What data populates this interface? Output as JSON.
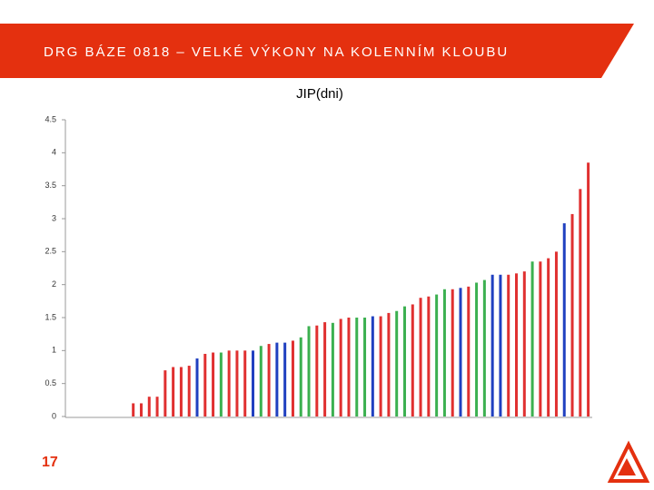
{
  "header": {
    "title": "DRG BÁZE 0818 – VELKÉ VÝKONY NA KOLENNÍM KLOUBU"
  },
  "slide_number": "17",
  "chart_data": {
    "type": "bar",
    "title": "JIP(dni)",
    "values": [
      0,
      0,
      0,
      0,
      0,
      0,
      0,
      0,
      0.2,
      0.2,
      0.3,
      0.3,
      0.7,
      0.75,
      0.75,
      0.77,
      0.88,
      0.95,
      0.97,
      0.97,
      1.0,
      1.0,
      1.0,
      1.0,
      1.07,
      1.1,
      1.12,
      1.12,
      1.15,
      1.2,
      1.37,
      1.38,
      1.43,
      1.42,
      1.48,
      1.5,
      1.5,
      1.5,
      1.52,
      1.52,
      1.57,
      1.6,
      1.67,
      1.7,
      1.8,
      1.82,
      1.85,
      1.93,
      1.93,
      1.95,
      1.97,
      2.03,
      2.07,
      2.15,
      2.15,
      2.15,
      2.17,
      2.2,
      2.35,
      2.35,
      2.4,
      2.5,
      2.93,
      3.07,
      3.45,
      3.85
    ],
    "colors": [
      "#e03030",
      "#e03030",
      "#e03030",
      "#e03030",
      "#e03030",
      "#e03030",
      "#e03030",
      "#e03030",
      "#e03030",
      "#e03030",
      "#e03030",
      "#e03030",
      "#e03030",
      "#e03030",
      "#e03030",
      "#e03030",
      "#2040c0",
      "#e03030",
      "#e03030",
      "#3cb050",
      "#e03030",
      "#e03030",
      "#e03030",
      "#2040c0",
      "#3cb050",
      "#e03030",
      "#2040c0",
      "#2040c0",
      "#e03030",
      "#3cb050",
      "#3cb050",
      "#e03030",
      "#e03030",
      "#3cb050",
      "#e03030",
      "#e03030",
      "#3cb050",
      "#3cb050",
      "#2040c0",
      "#e03030",
      "#e03030",
      "#3cb050",
      "#3cb050",
      "#e03030",
      "#e03030",
      "#e03030",
      "#3cb050",
      "#3cb050",
      "#e03030",
      "#2040c0",
      "#e03030",
      "#3cb050",
      "#3cb050",
      "#2040c0",
      "#2040c0",
      "#e03030",
      "#e03030",
      "#e03030",
      "#3cb050",
      "#e03030",
      "#e03030",
      "#e03030",
      "#2040c0",
      "#e03030",
      "#e03030",
      "#e03030"
    ],
    "ylim": [
      0,
      4.5
    ],
    "yticks": [
      0,
      0.5,
      1,
      1.5,
      2,
      2.5,
      3,
      3.5,
      4,
      4.5
    ]
  }
}
